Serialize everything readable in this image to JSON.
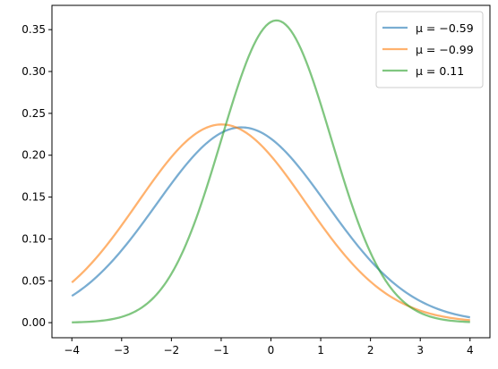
{
  "chart_data": {
    "type": "line",
    "title": "",
    "xlabel": "",
    "ylabel": "",
    "xlim": [
      -4.4,
      4.4
    ],
    "ylim": [
      -0.018,
      0.379
    ],
    "x_ticks": [
      -4,
      -3,
      -2,
      -1,
      0,
      1,
      2,
      3,
      4
    ],
    "x_tick_labels": [
      "−4",
      "−3",
      "−2",
      "−1",
      "0",
      "1",
      "2",
      "3",
      "4"
    ],
    "y_ticks": [
      0.0,
      0.05,
      0.1,
      0.15,
      0.2,
      0.25,
      0.3,
      0.35
    ],
    "y_tick_labels": [
      "0.00",
      "0.05",
      "0.10",
      "0.15",
      "0.20",
      "0.25",
      "0.30",
      "0.35"
    ],
    "grid": false,
    "legend_position": "top-right",
    "x": [
      -4,
      -3.5,
      -3,
      -2.5,
      -2,
      -1.5,
      -1,
      -0.5,
      0,
      0.5,
      1,
      1.5,
      2,
      2.5,
      3,
      3.5,
      4
    ],
    "series": [
      {
        "name": "μ = −0.59",
        "mu": -0.59,
        "sigma": 1.71,
        "color": "#1f77b4",
        "values": [
          0.032,
          0.055,
          0.087,
          0.126,
          0.167,
          0.206,
          0.228,
          0.233,
          0.221,
          0.191,
          0.153,
          0.113,
          0.077,
          0.049,
          0.028,
          0.015,
          0.007
        ]
      },
      {
        "name": "μ = −0.99",
        "mu": -0.99,
        "sigma": 1.685,
        "color": "#ff7f0e",
        "values": [
          0.048,
          0.077,
          0.115,
          0.157,
          0.197,
          0.227,
          0.237,
          0.227,
          0.198,
          0.158,
          0.116,
          0.078,
          0.048,
          0.027,
          0.014,
          0.007,
          0.003
        ]
      },
      {
        "name": "μ = 0.11",
        "mu": 0.11,
        "sigma": 1.105,
        "color": "#2ca02c",
        "values": [
          0.001,
          0.003,
          0.01,
          0.029,
          0.068,
          0.133,
          0.212,
          0.288,
          0.357,
          0.347,
          0.263,
          0.169,
          0.081,
          0.037,
          0.012,
          0.004,
          0.001
        ]
      }
    ]
  }
}
